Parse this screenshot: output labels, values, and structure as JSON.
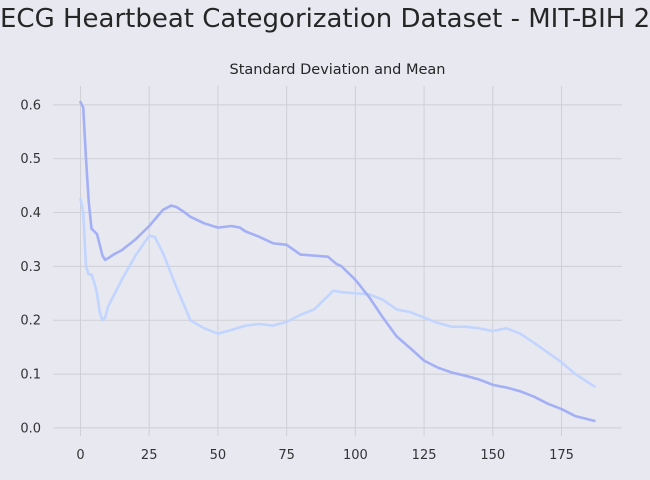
{
  "suptitle": "ECG Heartbeat Categorization Dataset - MIT-BIH 2",
  "chart_data": {
    "type": "line",
    "title": "Standard Deviation and Mean",
    "xlabel": "",
    "ylabel": "",
    "xlim": [
      -10,
      197
    ],
    "ylim": [
      -0.015,
      0.635
    ],
    "xticks": [
      0,
      25,
      50,
      75,
      100,
      125,
      150,
      175
    ],
    "yticks": [
      0.0,
      0.1,
      0.2,
      0.3,
      0.4,
      0.5,
      0.6
    ],
    "ytick_labels": [
      "0.0",
      "0.1",
      "0.2",
      "0.3",
      "0.4",
      "0.5",
      "0.6"
    ],
    "grid": true,
    "series": [
      {
        "color": "#a4b0f5",
        "x": [
          0,
          1,
          2,
          3,
          4,
          5,
          6,
          7,
          8,
          9,
          10,
          12,
          15,
          20,
          25,
          30,
          33,
          35,
          38,
          40,
          45,
          50,
          55,
          58,
          60,
          65,
          70,
          75,
          80,
          85,
          90,
          93,
          95,
          100,
          105,
          110,
          115,
          120,
          125,
          130,
          135,
          140,
          145,
          150,
          155,
          160,
          165,
          170,
          175,
          180,
          187
        ],
        "y": [
          0.605,
          0.595,
          0.5,
          0.42,
          0.37,
          0.365,
          0.36,
          0.34,
          0.32,
          0.312,
          0.315,
          0.322,
          0.33,
          0.35,
          0.375,
          0.405,
          0.413,
          0.41,
          0.4,
          0.392,
          0.38,
          0.372,
          0.375,
          0.372,
          0.365,
          0.355,
          0.343,
          0.34,
          0.322,
          0.32,
          0.318,
          0.305,
          0.3,
          0.275,
          0.243,
          0.205,
          0.17,
          0.148,
          0.125,
          0.112,
          0.103,
          0.097,
          0.09,
          0.08,
          0.075,
          0.068,
          0.058,
          0.045,
          0.035,
          0.022,
          0.013
        ]
      },
      {
        "color": "#c2d5ff",
        "x": [
          0,
          1,
          2,
          3,
          4,
          5,
          6,
          7,
          8,
          9,
          10,
          12,
          15,
          20,
          25,
          27,
          30,
          35,
          40,
          45,
          50,
          55,
          60,
          65,
          70,
          75,
          80,
          85,
          90,
          92,
          95,
          100,
          105,
          110,
          115,
          120,
          125,
          130,
          135,
          140,
          145,
          150,
          155,
          160,
          165,
          170,
          175,
          180,
          187
        ],
        "y": [
          0.425,
          0.4,
          0.3,
          0.285,
          0.285,
          0.27,
          0.25,
          0.215,
          0.2,
          0.205,
          0.225,
          0.245,
          0.275,
          0.32,
          0.357,
          0.355,
          0.325,
          0.26,
          0.2,
          0.185,
          0.175,
          0.182,
          0.19,
          0.193,
          0.19,
          0.197,
          0.21,
          0.22,
          0.245,
          0.255,
          0.252,
          0.25,
          0.248,
          0.238,
          0.22,
          0.215,
          0.205,
          0.195,
          0.188,
          0.188,
          0.185,
          0.18,
          0.185,
          0.175,
          0.158,
          0.14,
          0.122,
          0.1,
          0.077
        ]
      }
    ]
  }
}
